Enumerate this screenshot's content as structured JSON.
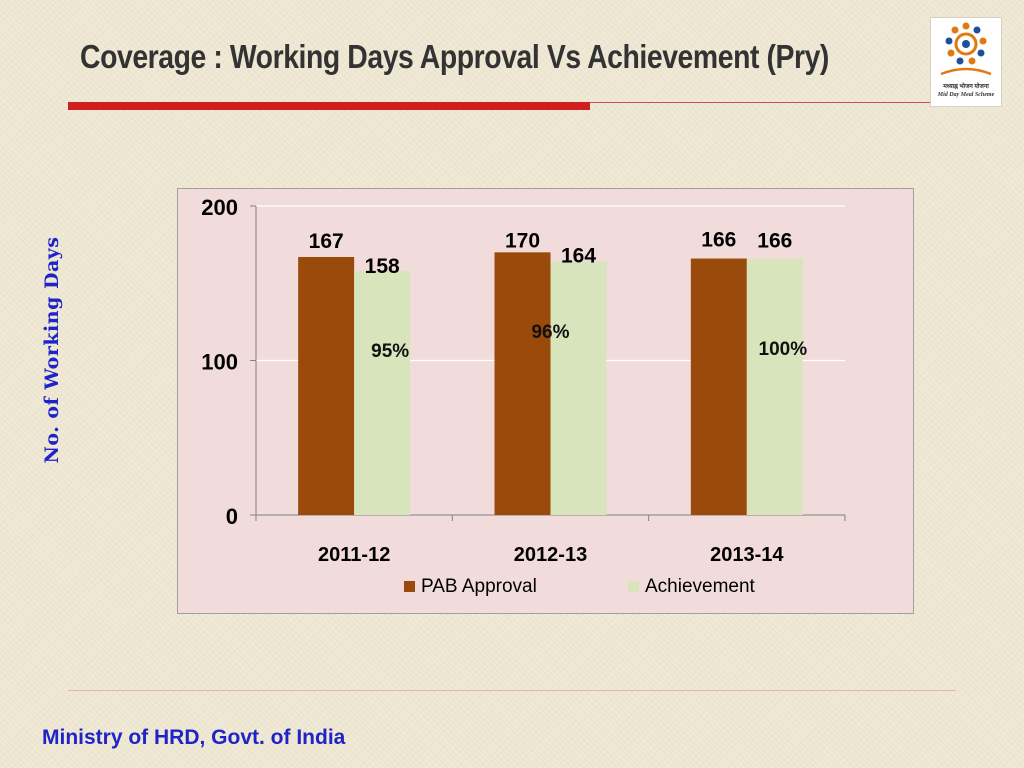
{
  "slide": {
    "title": "Coverage : Working Days Approval Vs Achievement (Pry)",
    "footer": "Ministry of HRD, Govt. of India",
    "logo": {
      "line1": "मध्याह्न भोजन योजना",
      "line2": "Mid Day Meal Scheme"
    },
    "colors": {
      "title": "#333333",
      "accent_red": "#d11f1f",
      "footer_blue": "#1f24c8"
    }
  },
  "chart_data": {
    "type": "bar",
    "title": "",
    "xlabel": "",
    "ylabel": "No. of Working Days",
    "ylim": [
      0,
      200
    ],
    "yticks": [
      "0",
      "100",
      "200"
    ],
    "categories": [
      "2011-12",
      "2012-13",
      "2013-14"
    ],
    "series": [
      {
        "name": "PAB Approval",
        "values": [
          167,
          170,
          166
        ],
        "color": "#9a4a0a",
        "labels": [
          "167",
          "170",
          "166"
        ]
      },
      {
        "name": "Achievement",
        "values": [
          158,
          164,
          166
        ],
        "color": "#d8e4bc",
        "labels": [
          "158",
          "164",
          "166"
        ]
      }
    ],
    "annotations": [
      "95%",
      "96%",
      "100%"
    ],
    "grid": true,
    "legend_position": "bottom"
  }
}
